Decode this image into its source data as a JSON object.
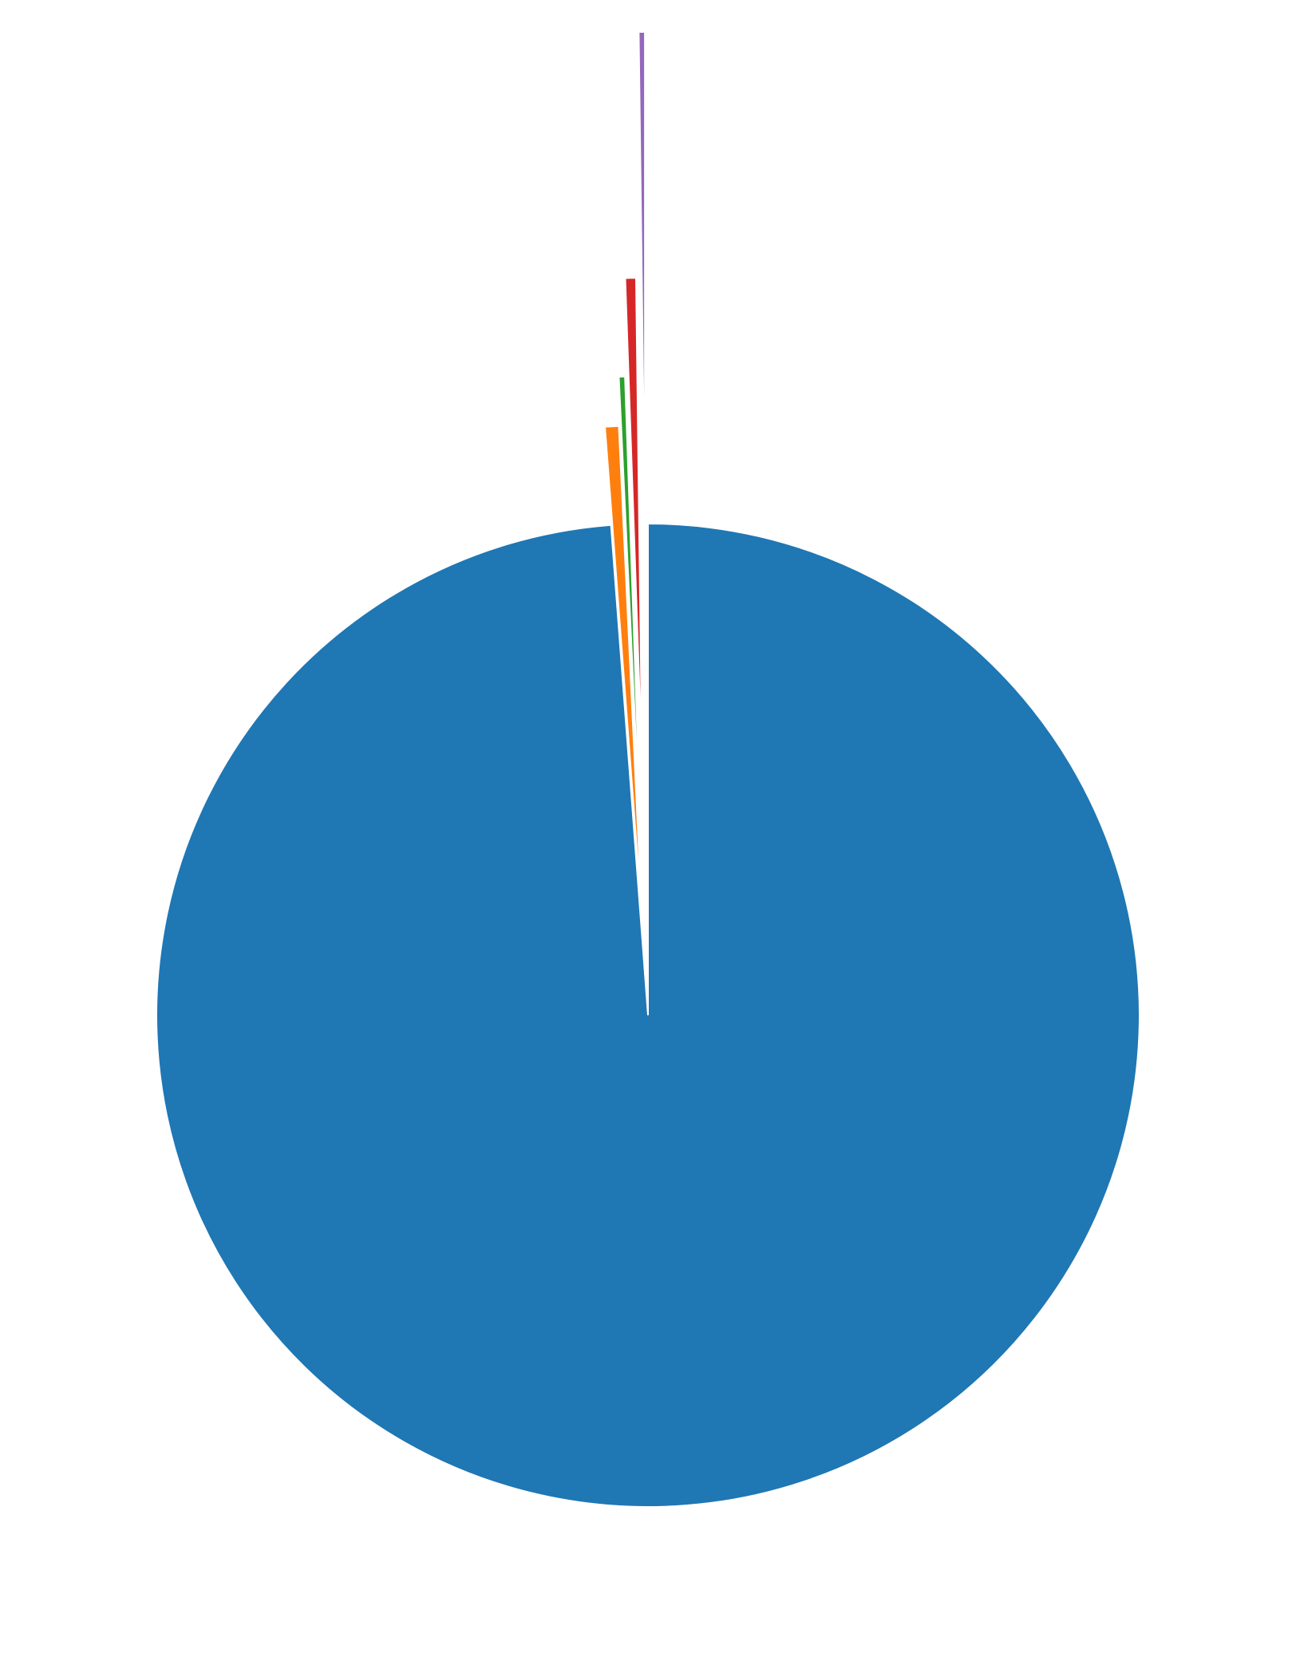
{
  "chart_data": {
    "type": "pie",
    "title": "",
    "start_angle_deg": 90,
    "direction": "clockwise",
    "slices": [
      {
        "value": 98.8,
        "color": "#1f77b4",
        "explode": 0
      },
      {
        "value": 0.45,
        "color": "#ff7f0e",
        "explode": 0.2
      },
      {
        "value": 0.2,
        "color": "#2ca02c",
        "explode": 0.3
      },
      {
        "value": 0.35,
        "color": "#d62728",
        "explode": 0.5
      },
      {
        "value": 0.2,
        "color": "#9467bd",
        "explode": 1.0
      }
    ]
  }
}
